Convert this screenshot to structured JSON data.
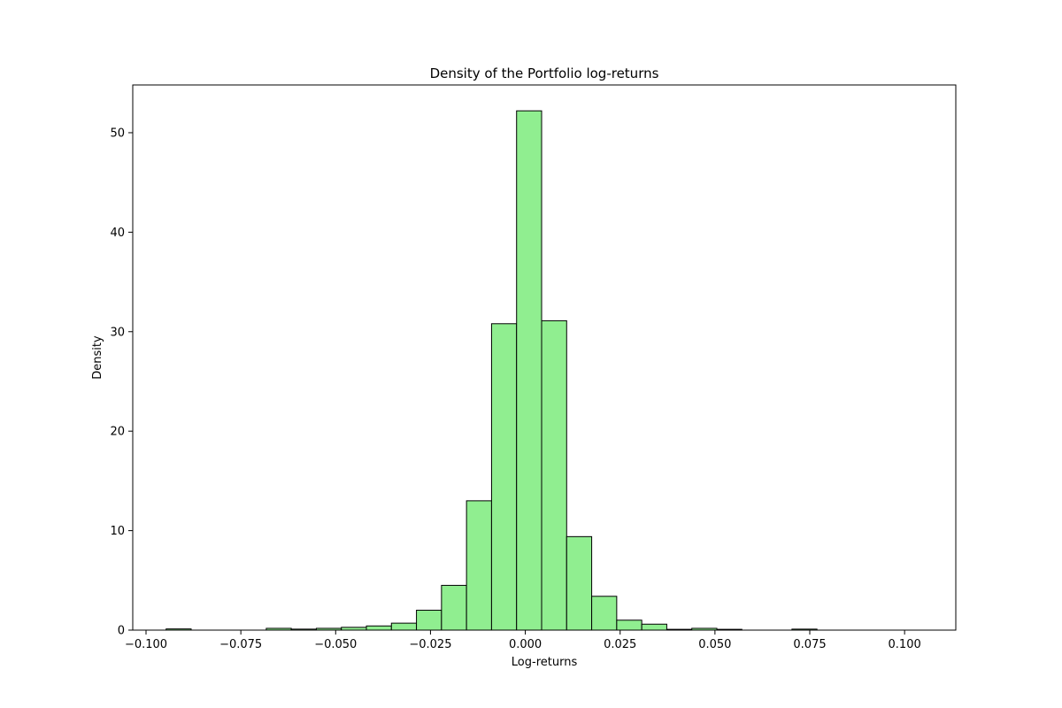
{
  "chart_data": {
    "type": "bar",
    "title": "Density of the Portfolio log-returns",
    "xlabel": "Log-returns",
    "ylabel": "Density",
    "xlim": [
      -0.1035,
      0.1135
    ],
    "ylim": [
      0,
      54.8
    ],
    "x_ticks": [
      -0.1,
      -0.075,
      -0.05,
      -0.025,
      0.0,
      0.025,
      0.05,
      0.075,
      0.1
    ],
    "x_tick_labels": [
      "−0.100",
      "−0.075",
      "−0.050",
      "−0.025",
      "0.000",
      "0.025",
      "0.050",
      "0.075",
      "0.100"
    ],
    "y_ticks": [
      0,
      10,
      20,
      30,
      40,
      50
    ],
    "y_tick_labels": [
      "0",
      "10",
      "20",
      "30",
      "40",
      "50"
    ],
    "grid": false,
    "bin_edges": [
      -0.0955,
      -0.0922,
      -0.0889,
      -0.0856,
      -0.0823,
      -0.079,
      -0.0757,
      -0.0724,
      -0.0691,
      -0.0658,
      -0.0625,
      -0.0592,
      -0.0559,
      -0.0526,
      -0.0493,
      -0.046,
      -0.0427,
      -0.0394,
      -0.0361,
      -0.0328,
      -0.0295,
      -0.0262,
      -0.0229,
      -0.0196,
      -0.0163,
      -0.013,
      -0.0097,
      -0.0064,
      -0.0031,
      0.0002,
      0.0035,
      0.0068,
      0.0101,
      0.0134,
      0.0167,
      0.02,
      0.0233,
      0.0266,
      0.0299,
      0.0332,
      0.0365,
      0.0398,
      0.0431,
      0.0464,
      0.0497,
      0.053,
      0.0563,
      0.0596,
      0.0629,
      0.0662,
      0.0695,
      0.0728,
      0.0761,
      0.0794,
      0.0827,
      0.086,
      0.0893,
      0.0926,
      0.0959,
      0.0992,
      0.1025,
      0.104
    ],
    "bars": [
      {
        "x0": -0.0947,
        "x1": -0.0881,
        "value": 0.12
      },
      {
        "x0": -0.0881,
        "x1": -0.0815,
        "value": 0.0
      },
      {
        "x0": -0.0815,
        "x1": -0.0749,
        "value": 0.0
      },
      {
        "x0": -0.0749,
        "x1": -0.0683,
        "value": 0.0
      },
      {
        "x0": -0.0683,
        "x1": -0.0617,
        "value": 0.18
      },
      {
        "x0": -0.0617,
        "x1": -0.0551,
        "value": 0.1
      },
      {
        "x0": -0.0551,
        "x1": -0.0485,
        "value": 0.18
      },
      {
        "x0": -0.0485,
        "x1": -0.0419,
        "value": 0.28
      },
      {
        "x0": -0.0419,
        "x1": -0.0353,
        "value": 0.42
      },
      {
        "x0": -0.0353,
        "x1": -0.0287,
        "value": 0.7
      },
      {
        "x0": -0.0287,
        "x1": -0.0221,
        "value": 2.0
      },
      {
        "x0": -0.0221,
        "x1": -0.0155,
        "value": 4.5
      },
      {
        "x0": -0.0155,
        "x1": -0.0089,
        "value": 13.0
      },
      {
        "x0": -0.0089,
        "x1": -0.0023,
        "value": 30.8
      },
      {
        "x0": -0.0023,
        "x1": 0.0043,
        "value": 52.2
      },
      {
        "x0": 0.0043,
        "x1": 0.0109,
        "value": 31.1
      },
      {
        "x0": 0.0109,
        "x1": 0.0175,
        "value": 9.4
      },
      {
        "x0": 0.0175,
        "x1": 0.0241,
        "value": 3.4
      },
      {
        "x0": 0.0241,
        "x1": 0.0307,
        "value": 1.0
      },
      {
        "x0": 0.0307,
        "x1": 0.0373,
        "value": 0.6
      },
      {
        "x0": 0.0373,
        "x1": 0.0439,
        "value": 0.08
      },
      {
        "x0": 0.0439,
        "x1": 0.0505,
        "value": 0.18
      },
      {
        "x0": 0.0505,
        "x1": 0.0571,
        "value": 0.08
      },
      {
        "x0": 0.0571,
        "x1": 0.0637,
        "value": 0.0
      },
      {
        "x0": 0.0637,
        "x1": 0.0703,
        "value": 0.0
      },
      {
        "x0": 0.0703,
        "x1": 0.0769,
        "value": 0.1
      },
      {
        "x0": 0.0769,
        "x1": 0.0835,
        "value": 0.0
      },
      {
        "x0": 0.0835,
        "x1": 0.0901,
        "value": 0.0
      },
      {
        "x0": 0.0901,
        "x1": 0.0967,
        "value": 0.0
      },
      {
        "x0": 0.0967,
        "x1": 0.1033,
        "value": 0.0
      }
    ],
    "bar_color": "#90ee90",
    "edge_color": "#000000"
  }
}
